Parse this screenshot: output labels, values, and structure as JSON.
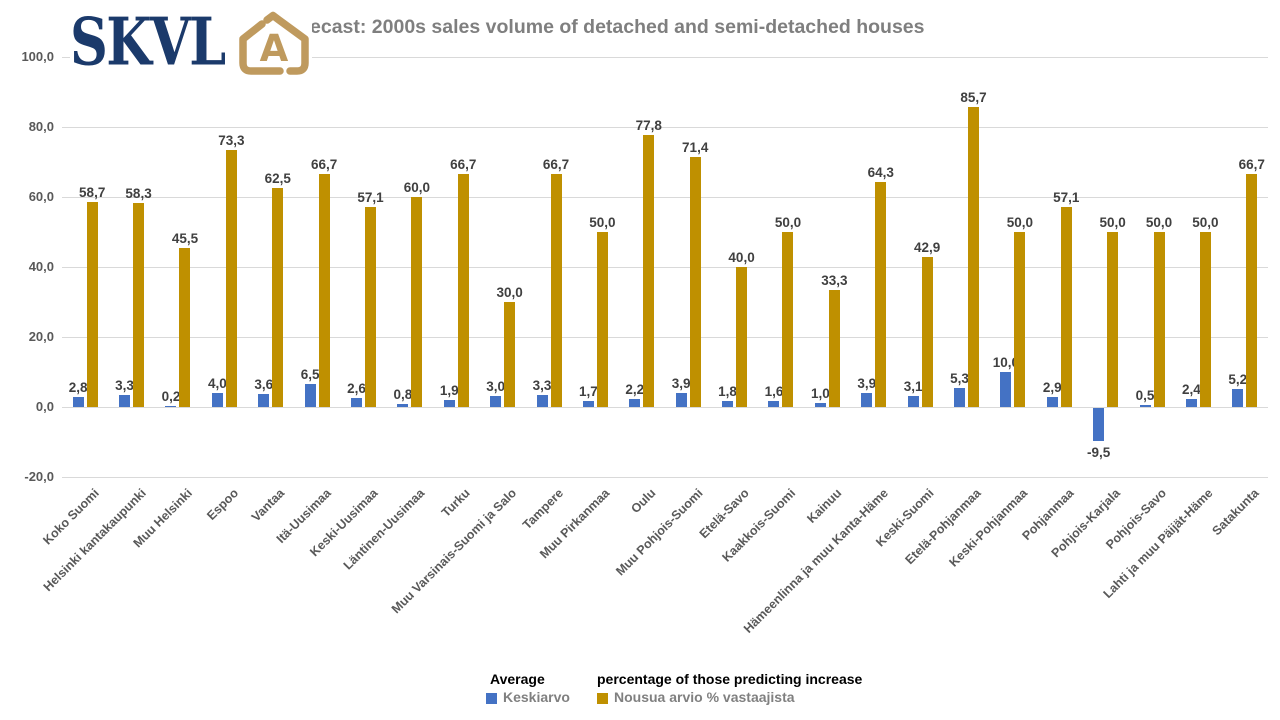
{
  "logo": {
    "text": "SKVL",
    "navy": "#1B3A6B",
    "gold": "#BF9A5E"
  },
  "title": "ecast: 2000s sales volume of detached and semi-detached houses",
  "chart_data": {
    "type": "bar",
    "title": "ecast: 2000s sales volume of detached and semi-detached houses",
    "categories": [
      "Koko Suomi",
      "Helsinki kantakaupunki",
      "Muu Helsinki",
      "Espoo",
      "Vantaa",
      "Itä-Uusimaa",
      "Keski-Uusimaa",
      "Läntinen-Uusimaa",
      "Turku",
      "Muu Varsinais-Suomi ja Salo",
      "Tampere",
      "Muu Pirkanmaa",
      "Oulu",
      "Muu Pohjois-Suomi",
      "Etelä-Savo",
      "Kaakkois-Suomi",
      "Kainuu",
      "Hämeenlinna ja muu Kanta-Häme",
      "Keski-Suomi",
      "Etelä-Pohjanmaa",
      "Keski-Pohjanmaa",
      "Pohjanmaa",
      "Pohjois-Karjala",
      "Pohjois-Savo",
      "Lahti ja muu Päijät-Häme",
      "Satakunta"
    ],
    "series": [
      {
        "name": "Keskiarvo",
        "color": "#4472C4",
        "values": [
          2.8,
          3.3,
          0.2,
          4.0,
          3.6,
          6.5,
          2.6,
          0.8,
          1.9,
          3.0,
          3.3,
          1.7,
          2.2,
          3.9,
          1.8,
          1.6,
          1.0,
          3.9,
          3.1,
          5.3,
          10.0,
          2.9,
          -9.5,
          0.5,
          2.4,
          5.2
        ]
      },
      {
        "name": "Nousua arvio % vastaajista",
        "color": "#BF9000",
        "values": [
          58.7,
          58.3,
          45.5,
          73.3,
          62.5,
          66.7,
          57.1,
          60.0,
          66.7,
          30.0,
          66.7,
          50.0,
          77.8,
          71.4,
          40.0,
          50.0,
          33.3,
          64.3,
          42.9,
          85.7,
          50.0,
          57.1,
          50.0,
          50.0,
          50.0,
          66.7
        ]
      }
    ],
    "y_ticks": [
      100,
      80,
      60,
      40,
      20,
      0,
      -20
    ],
    "y_tick_labels": [
      "100,0",
      "80,0",
      "60,0",
      "40,0",
      "20,0",
      "0,0",
      "-20,0"
    ],
    "ylim": [
      -20,
      100
    ],
    "grid": true,
    "legend_position": "bottom",
    "decimal_separator": ",",
    "xlabel": "",
    "ylabel": ""
  },
  "legend": {
    "translations": [
      "Average",
      "percentage of those predicting increase"
    ],
    "items": [
      {
        "label": "Keskiarvo",
        "color": "#4472C4"
      },
      {
        "label": "Nousua arvio % vastaajista",
        "color": "#BF9000"
      }
    ]
  }
}
